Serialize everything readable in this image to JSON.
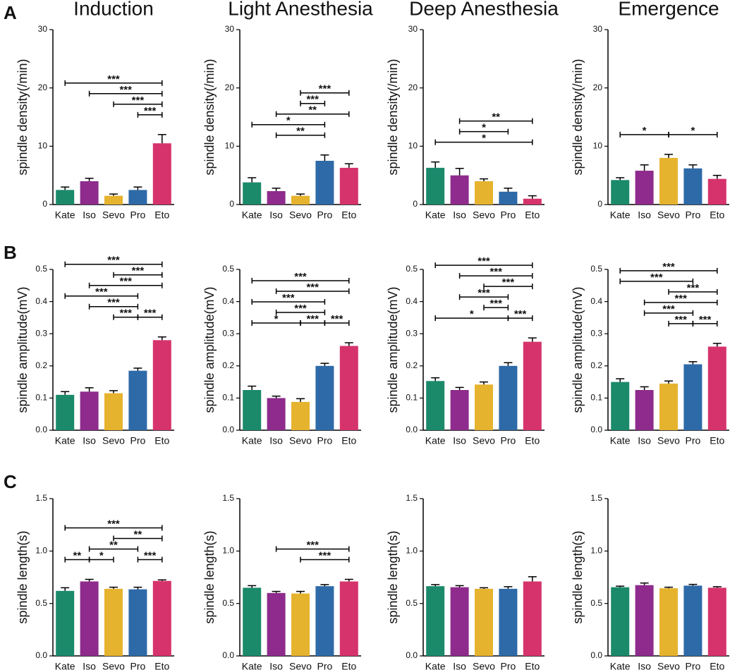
{
  "chart_data": [
    {
      "type": "bar",
      "panel": "A",
      "title": "Induction",
      "ylabel": "spindle density(/min)",
      "categories": [
        "Kate",
        "Iso",
        "Sevo",
        "Pro",
        "Eto"
      ],
      "colors": [
        "#1b8a6b",
        "#8e2b8c",
        "#e6b32e",
        "#2e6aa8",
        "#d6336c"
      ],
      "values": [
        2.5,
        4,
        1.5,
        2.5,
        10.5
      ],
      "errors": [
        0.5,
        0.5,
        0.3,
        0.5,
        1.5
      ],
      "ylim": [
        0,
        30
      ],
      "yticks": [
        0,
        10,
        20,
        30
      ],
      "brackets": [
        {
          "from": 3,
          "to": 4,
          "label": "***"
        },
        {
          "from": 2,
          "to": 4,
          "label": "***"
        },
        {
          "from": 1,
          "to": 4,
          "label": "***"
        },
        {
          "from": 0,
          "to": 4,
          "label": "***"
        }
      ]
    },
    {
      "type": "bar",
      "title": "Light Anesthesia",
      "ylabel": "spindle density(/min)",
      "categories": [
        "Kate",
        "Iso",
        "Sevo",
        "Pro",
        "Eto"
      ],
      "colors": [
        "#1b8a6b",
        "#8e2b8c",
        "#e6b32e",
        "#2e6aa8",
        "#d6336c"
      ],
      "values": [
        3.8,
        2.3,
        1.5,
        7.5,
        6.3
      ],
      "errors": [
        0.8,
        0.5,
        0.3,
        1,
        0.7
      ],
      "ylim": [
        0,
        30
      ],
      "yticks": [
        0,
        10,
        20,
        30
      ],
      "brackets": [
        {
          "from": 1,
          "to": 3,
          "label": "**"
        },
        {
          "from": 0,
          "to": 3,
          "label": "*"
        },
        {
          "from": 1,
          "to": 4,
          "label": "**"
        },
        {
          "from": 2,
          "to": 3,
          "label": "***"
        },
        {
          "from": 2,
          "to": 4,
          "label": "***"
        }
      ]
    },
    {
      "type": "bar",
      "title": "Deep Anesthesia",
      "ylabel": "spindle density(/min)",
      "categories": [
        "Kate",
        "Iso",
        "Sevo",
        "Pro",
        "Eto"
      ],
      "colors": [
        "#1b8a6b",
        "#8e2b8c",
        "#e6b32e",
        "#2e6aa8",
        "#d6336c"
      ],
      "values": [
        6.3,
        5,
        4,
        2.2,
        1
      ],
      "errors": [
        1,
        1.2,
        0.4,
        0.6,
        0.5
      ],
      "ylim": [
        0,
        30
      ],
      "yticks": [
        0,
        10,
        20,
        30
      ],
      "brackets": [
        {
          "from": 0,
          "to": 4,
          "label": "*"
        },
        {
          "from": 1,
          "to": 3,
          "label": "*"
        },
        {
          "from": 1,
          "to": 4,
          "label": "**"
        }
      ]
    },
    {
      "type": "bar",
      "title": "Emergence",
      "ylabel": "spindle density(/min)",
      "categories": [
        "Kate",
        "Iso",
        "Sevo",
        "Pro",
        "Eto"
      ],
      "colors": [
        "#1b8a6b",
        "#8e2b8c",
        "#e6b32e",
        "#2e6aa8",
        "#d6336c"
      ],
      "values": [
        4.2,
        5.8,
        8,
        6.2,
        4.4
      ],
      "errors": [
        0.4,
        1,
        0.6,
        0.6,
        0.6
      ],
      "ylim": [
        0,
        30
      ],
      "yticks": [
        0,
        10,
        20,
        30
      ],
      "brackets": [
        {
          "from": 0,
          "to": 2,
          "label": "*"
        },
        {
          "from": 2,
          "to": 4,
          "label": "*"
        }
      ]
    },
    {
      "type": "bar",
      "panel": "B",
      "ylabel": "spindle amplitude(mV)",
      "categories": [
        "Kate",
        "Iso",
        "Sevo",
        "Pro",
        "Eto"
      ],
      "colors": [
        "#1b8a6b",
        "#8e2b8c",
        "#e6b32e",
        "#2e6aa8",
        "#d6336c"
      ],
      "values": [
        0.11,
        0.12,
        0.115,
        0.185,
        0.28
      ],
      "errors": [
        0.01,
        0.012,
        0.008,
        0.008,
        0.01
      ],
      "ylim": [
        0,
        0.5
      ],
      "yticks": [
        {
          "value": 0,
          "label": "0.0"
        },
        0.1,
        0.2,
        0.3,
        0.4,
        0.5
      ],
      "brackets": [
        {
          "from": 2,
          "to": 3,
          "label": "***"
        },
        {
          "from": 1,
          "to": 3,
          "label": "***"
        },
        {
          "from": 0,
          "to": 3,
          "label": "***"
        },
        {
          "from": 3,
          "to": 4,
          "label": "***"
        },
        {
          "from": 1,
          "to": 4,
          "label": "***"
        },
        {
          "from": 2,
          "to": 4,
          "label": "***"
        },
        {
          "from": 0,
          "to": 4,
          "label": "***"
        }
      ]
    },
    {
      "type": "bar",
      "ylabel": "spindle amplitude(mV)",
      "categories": [
        "Kate",
        "Iso",
        "Sevo",
        "Pro",
        "Eto"
      ],
      "colors": [
        "#1b8a6b",
        "#8e2b8c",
        "#e6b32e",
        "#2e6aa8",
        "#d6336c"
      ],
      "values": [
        0.125,
        0.1,
        0.088,
        0.2,
        0.262
      ],
      "errors": [
        0.012,
        0.006,
        0.01,
        0.008,
        0.01
      ],
      "ylim": [
        0,
        0.5
      ],
      "yticks": [
        {
          "value": 0,
          "label": "0.0"
        },
        0.1,
        0.2,
        0.3,
        0.4,
        0.5
      ],
      "brackets": [
        {
          "from": 0,
          "to": 2,
          "label": "*"
        },
        {
          "from": 2,
          "to": 3,
          "label": "***"
        },
        {
          "from": 3,
          "to": 4,
          "label": "***"
        },
        {
          "from": 1,
          "to": 3,
          "label": "***"
        },
        {
          "from": 0,
          "to": 3,
          "label": "***"
        },
        {
          "from": 1,
          "to": 4,
          "label": "***"
        },
        {
          "from": 0,
          "to": 4,
          "label": "***"
        }
      ]
    },
    {
      "type": "bar",
      "ylabel": "spindle amplitude(mV)",
      "categories": [
        "Kate",
        "Iso",
        "Sevo",
        "Pro",
        "Eto"
      ],
      "colors": [
        "#1b8a6b",
        "#8e2b8c",
        "#e6b32e",
        "#2e6aa8",
        "#d6336c"
      ],
      "values": [
        0.153,
        0.125,
        0.142,
        0.2,
        0.275
      ],
      "errors": [
        0.01,
        0.008,
        0.008,
        0.01,
        0.012
      ],
      "ylim": [
        0,
        0.5
      ],
      "yticks": [
        {
          "value": 0,
          "label": "0.0"
        },
        0.1,
        0.2,
        0.3,
        0.4,
        0.5
      ],
      "brackets": [
        {
          "from": 0,
          "to": 3,
          "label": "*"
        },
        {
          "from": 2,
          "to": 3,
          "label": "***"
        },
        {
          "from": 1,
          "to": 3,
          "label": "***"
        },
        {
          "from": 3,
          "to": 4,
          "label": "***"
        },
        {
          "from": 2,
          "to": 4,
          "label": "***"
        },
        {
          "from": 1,
          "to": 4,
          "label": "***"
        },
        {
          "from": 0,
          "to": 4,
          "label": "***"
        }
      ]
    },
    {
      "type": "bar",
      "ylabel": "spindle amplitude(mV)",
      "categories": [
        "Kate",
        "Iso",
        "Sevo",
        "Pro",
        "Eto"
      ],
      "colors": [
        "#1b8a6b",
        "#8e2b8c",
        "#e6b32e",
        "#2e6aa8",
        "#d6336c"
      ],
      "values": [
        0.15,
        0.125,
        0.145,
        0.205,
        0.26
      ],
      "errors": [
        0.01,
        0.01,
        0.008,
        0.008,
        0.01
      ],
      "ylim": [
        0,
        0.5
      ],
      "yticks": [
        {
          "value": 0,
          "label": "0.0"
        },
        0.1,
        0.2,
        0.3,
        0.4,
        0.5
      ],
      "brackets": [
        {
          "from": 2,
          "to": 3,
          "label": "***"
        },
        {
          "from": 1,
          "to": 3,
          "label": "***"
        },
        {
          "from": 1,
          "to": 4,
          "label": "***"
        },
        {
          "from": 2,
          "to": 4,
          "label": "***"
        },
        {
          "from": 3,
          "to": 4,
          "label": "***"
        },
        {
          "from": 0,
          "to": 3,
          "label": "***"
        },
        {
          "from": 0,
          "to": 4,
          "label": "***"
        }
      ]
    },
    {
      "type": "bar",
      "panel": "C",
      "ylabel": "spindle length(s)",
      "categories": [
        "Kate",
        "Iso",
        "Sevo",
        "Pro",
        "Eto"
      ],
      "colors": [
        "#1b8a6b",
        "#8e2b8c",
        "#e6b32e",
        "#2e6aa8",
        "#d6336c"
      ],
      "values": [
        0.62,
        0.71,
        0.64,
        0.635,
        0.715
      ],
      "errors": [
        0.03,
        0.02,
        0.015,
        0.02,
        0.01
      ],
      "ylim": [
        0,
        1.5
      ],
      "yticks": [
        {
          "value": 0,
          "label": "0.0"
        },
        0.5,
        {
          "value": 1,
          "label": "1.0"
        },
        1.5
      ],
      "brackets": [
        {
          "from": 0,
          "to": 1,
          "label": "**"
        },
        {
          "from": 1,
          "to": 2,
          "label": "*"
        },
        {
          "from": 1,
          "to": 3,
          "label": "**"
        },
        {
          "from": 3,
          "to": 4,
          "label": "***"
        },
        {
          "from": 2,
          "to": 4,
          "label": "**"
        },
        {
          "from": 0,
          "to": 4,
          "label": "***"
        }
      ]
    },
    {
      "type": "bar",
      "ylabel": "spindle length(s)",
      "categories": [
        "Kate",
        "Iso",
        "Sevo",
        "Pro",
        "Eto"
      ],
      "colors": [
        "#1b8a6b",
        "#8e2b8c",
        "#e6b32e",
        "#2e6aa8",
        "#d6336c"
      ],
      "values": [
        0.65,
        0.6,
        0.595,
        0.665,
        0.71
      ],
      "errors": [
        0.02,
        0.015,
        0.02,
        0.015,
        0.02
      ],
      "ylim": [
        0,
        1.5
      ],
      "yticks": [
        {
          "value": 0,
          "label": "0.0"
        },
        0.5,
        {
          "value": 1,
          "label": "1.0"
        },
        1.5
      ],
      "brackets": [
        {
          "from": 2,
          "to": 4,
          "label": "***"
        },
        {
          "from": 1,
          "to": 4,
          "label": "***"
        }
      ]
    },
    {
      "type": "bar",
      "ylabel": "spindle length(s)",
      "categories": [
        "Kate",
        "Iso",
        "Sevo",
        "Pro",
        "Eto"
      ],
      "colors": [
        "#1b8a6b",
        "#8e2b8c",
        "#e6b32e",
        "#2e6aa8",
        "#d6336c"
      ],
      "values": [
        0.665,
        0.655,
        0.64,
        0.64,
        0.71
      ],
      "errors": [
        0.015,
        0.015,
        0.01,
        0.02,
        0.045
      ],
      "ylim": [
        0,
        1.5
      ],
      "yticks": [
        {
          "value": 0,
          "label": "0.0"
        },
        0.5,
        {
          "value": 1,
          "label": "1.0"
        },
        1.5
      ]
    },
    {
      "type": "bar",
      "ylabel": "spindle length(s)",
      "categories": [
        "Kate",
        "Iso",
        "Sevo",
        "Pro",
        "Eto"
      ],
      "colors": [
        "#1b8a6b",
        "#8e2b8c",
        "#e6b32e",
        "#2e6aa8",
        "#d6336c"
      ],
      "values": [
        0.655,
        0.675,
        0.645,
        0.67,
        0.65
      ],
      "errors": [
        0.01,
        0.02,
        0.01,
        0.012,
        0.01
      ],
      "ylim": [
        0,
        1.5
      ],
      "yticks": [
        {
          "value": 0,
          "label": "0.0"
        },
        0.5,
        {
          "value": 1,
          "label": "1.0"
        },
        1.5
      ]
    }
  ]
}
